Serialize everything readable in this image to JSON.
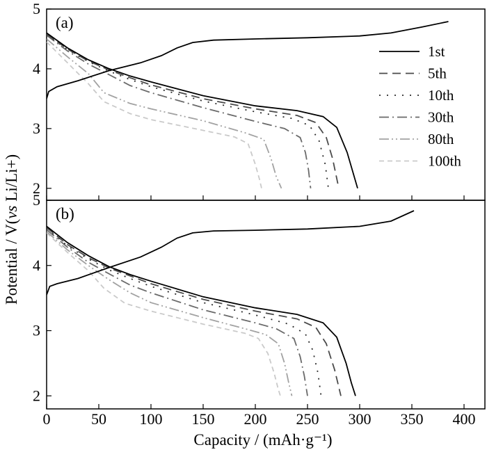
{
  "chart_data": {
    "type": "line",
    "xlabel": "Capacity / (mAh·g⁻¹)",
    "ylabel_parts": [
      "Potential / V(",
      "vs",
      " Li/Li+)"
    ],
    "xlim": [
      0,
      420
    ],
    "ylim": [
      1.8,
      5.0
    ],
    "x_ticks": [
      0,
      50,
      100,
      150,
      200,
      250,
      300,
      350,
      400
    ],
    "y_ticks": [
      2,
      3,
      4,
      5
    ],
    "grid": false,
    "legend_position": "right",
    "legend": [
      {
        "name": "1st",
        "color": "#000000",
        "dash": ""
      },
      {
        "name": "5th",
        "color": "#4a4a4a",
        "dash": "12,7"
      },
      {
        "name": "10th",
        "color": "#2a2a2a",
        "dash": "2,9"
      },
      {
        "name": "30th",
        "color": "#6a6a6a",
        "dash": "14,5,2,5"
      },
      {
        "name": "80th",
        "color": "#a2a2a2",
        "dash": "14,4,2,4,2,4"
      },
      {
        "name": "100th",
        "color": "#cacaca",
        "dash": "7,5"
      }
    ],
    "panels": [
      {
        "label": "(a)",
        "charge_1st": [
          [
            0,
            3.5
          ],
          [
            2,
            3.62
          ],
          [
            10,
            3.7
          ],
          [
            30,
            3.8
          ],
          [
            60,
            3.97
          ],
          [
            90,
            4.1
          ],
          [
            110,
            4.22
          ],
          [
            125,
            4.35
          ],
          [
            140,
            4.44
          ],
          [
            160,
            4.48
          ],
          [
            200,
            4.5
          ],
          [
            250,
            4.52
          ],
          [
            300,
            4.55
          ],
          [
            330,
            4.6
          ],
          [
            360,
            4.7
          ],
          [
            385,
            4.79
          ]
        ],
        "discharge": [
          {
            "name": "1st",
            "points": [
              [
                0,
                4.6
              ],
              [
                20,
                4.35
              ],
              [
                40,
                4.15
              ],
              [
                60,
                4.0
              ],
              [
                80,
                3.88
              ],
              [
                100,
                3.78
              ],
              [
                150,
                3.55
              ],
              [
                200,
                3.38
              ],
              [
                240,
                3.3
              ],
              [
                265,
                3.2
              ],
              [
                278,
                3.02
              ],
              [
                288,
                2.6
              ],
              [
                293,
                2.3
              ],
              [
                298,
                2.0
              ]
            ]
          },
          {
            "name": "5th",
            "points": [
              [
                0,
                4.58
              ],
              [
                20,
                4.33
              ],
              [
                40,
                4.13
              ],
              [
                60,
                3.98
              ],
              [
                80,
                3.85
              ],
              [
                100,
                3.73
              ],
              [
                150,
                3.5
              ],
              [
                200,
                3.33
              ],
              [
                240,
                3.22
              ],
              [
                258,
                3.1
              ],
              [
                268,
                2.85
              ],
              [
                274,
                2.5
              ],
              [
                280,
                2.0
              ]
            ]
          },
          {
            "name": "10th",
            "points": [
              [
                0,
                4.57
              ],
              [
                20,
                4.32
              ],
              [
                40,
                4.12
              ],
              [
                60,
                3.96
              ],
              [
                80,
                3.82
              ],
              [
                100,
                3.7
              ],
              [
                150,
                3.46
              ],
              [
                200,
                3.28
              ],
              [
                235,
                3.17
              ],
              [
                252,
                3.05
              ],
              [
                261,
                2.8
              ],
              [
                267,
                2.4
              ],
              [
                270,
                2.0
              ]
            ]
          },
          {
            "name": "30th",
            "points": [
              [
                0,
                4.56
              ],
              [
                20,
                4.3
              ],
              [
                40,
                4.08
              ],
              [
                60,
                3.9
              ],
              [
                80,
                3.72
              ],
              [
                100,
                3.6
              ],
              [
                150,
                3.35
              ],
              [
                200,
                3.12
              ],
              [
                228,
                3.0
              ],
              [
                243,
                2.85
              ],
              [
                248,
                2.6
              ],
              [
                251,
                2.3
              ],
              [
                253,
                2.0
              ]
            ]
          },
          {
            "name": "80th",
            "points": [
              [
                0,
                4.5
              ],
              [
                20,
                4.2
              ],
              [
                40,
                3.92
              ],
              [
                55,
                3.6
              ],
              [
                80,
                3.42
              ],
              [
                100,
                3.33
              ],
              [
                150,
                3.13
              ],
              [
                190,
                2.93
              ],
              [
                208,
                2.82
              ],
              [
                215,
                2.5
              ],
              [
                220,
                2.2
              ],
              [
                225,
                2.0
              ]
            ]
          },
          {
            "name": "100th",
            "points": [
              [
                0,
                4.45
              ],
              [
                20,
                4.1
              ],
              [
                40,
                3.75
              ],
              [
                55,
                3.45
              ],
              [
                80,
                3.25
              ],
              [
                100,
                3.15
              ],
              [
                150,
                2.97
              ],
              [
                180,
                2.86
              ],
              [
                193,
                2.75
              ],
              [
                200,
                2.4
              ],
              [
                204,
                2.15
              ],
              [
                206,
                2.0
              ]
            ]
          }
        ]
      },
      {
        "label": "(b)",
        "charge_1st": [
          [
            0,
            3.55
          ],
          [
            3,
            3.68
          ],
          [
            10,
            3.72
          ],
          [
            30,
            3.8
          ],
          [
            60,
            3.97
          ],
          [
            90,
            4.13
          ],
          [
            110,
            4.28
          ],
          [
            125,
            4.42
          ],
          [
            140,
            4.5
          ],
          [
            160,
            4.53
          ],
          [
            200,
            4.54
          ],
          [
            250,
            4.56
          ],
          [
            300,
            4.6
          ],
          [
            330,
            4.68
          ],
          [
            352,
            4.84
          ]
        ],
        "discharge": [
          {
            "name": "1st",
            "points": [
              [
                0,
                4.6
              ],
              [
                20,
                4.35
              ],
              [
                40,
                4.15
              ],
              [
                60,
                3.98
              ],
              [
                80,
                3.86
              ],
              [
                100,
                3.76
              ],
              [
                150,
                3.52
              ],
              [
                200,
                3.35
              ],
              [
                240,
                3.25
              ],
              [
                265,
                3.12
              ],
              [
                278,
                2.9
              ],
              [
                287,
                2.5
              ],
              [
                292,
                2.2
              ],
              [
                296,
                2.0
              ]
            ]
          },
          {
            "name": "5th",
            "points": [
              [
                0,
                4.58
              ],
              [
                20,
                4.32
              ],
              [
                40,
                4.12
              ],
              [
                60,
                3.96
              ],
              [
                80,
                3.84
              ],
              [
                100,
                3.72
              ],
              [
                150,
                3.48
              ],
              [
                200,
                3.3
              ],
              [
                240,
                3.18
              ],
              [
                258,
                3.05
              ],
              [
                268,
                2.8
              ],
              [
                276,
                2.4
              ],
              [
                282,
                2.0
              ]
            ]
          },
          {
            "name": "10th",
            "points": [
              [
                0,
                4.57
              ],
              [
                20,
                4.3
              ],
              [
                40,
                4.1
              ],
              [
                60,
                3.93
              ],
              [
                80,
                3.8
              ],
              [
                100,
                3.68
              ],
              [
                150,
                3.43
              ],
              [
                200,
                3.24
              ],
              [
                232,
                3.1
              ],
              [
                248,
                2.95
              ],
              [
                255,
                2.7
              ],
              [
                260,
                2.35
              ],
              [
                263,
                2.0
              ]
            ]
          },
          {
            "name": "30th",
            "points": [
              [
                0,
                4.55
              ],
              [
                20,
                4.28
              ],
              [
                40,
                4.05
              ],
              [
                60,
                3.87
              ],
              [
                80,
                3.7
              ],
              [
                100,
                3.58
              ],
              [
                150,
                3.32
              ],
              [
                200,
                3.12
              ],
              [
                220,
                3.03
              ],
              [
                237,
                2.88
              ],
              [
                243,
                2.6
              ],
              [
                247,
                2.3
              ],
              [
                250,
                2.0
              ]
            ]
          },
          {
            "name": "80th",
            "points": [
              [
                0,
                4.52
              ],
              [
                20,
                4.24
              ],
              [
                40,
                4.0
              ],
              [
                60,
                3.78
              ],
              [
                80,
                3.58
              ],
              [
                100,
                3.43
              ],
              [
                150,
                3.2
              ],
              [
                190,
                3.03
              ],
              [
                210,
                2.94
              ],
              [
                222,
                2.8
              ],
              [
                228,
                2.5
              ],
              [
                232,
                2.2
              ],
              [
                235,
                2.0
              ]
            ]
          },
          {
            "name": "100th",
            "points": [
              [
                0,
                4.5
              ],
              [
                20,
                4.2
              ],
              [
                40,
                3.92
              ],
              [
                55,
                3.65
              ],
              [
                75,
                3.42
              ],
              [
                100,
                3.3
              ],
              [
                150,
                3.1
              ],
              [
                190,
                2.96
              ],
              [
                203,
                2.88
              ],
              [
                212,
                2.65
              ],
              [
                218,
                2.35
              ],
              [
                222,
                2.1
              ],
              [
                224,
                2.0
              ]
            ]
          }
        ]
      }
    ]
  }
}
